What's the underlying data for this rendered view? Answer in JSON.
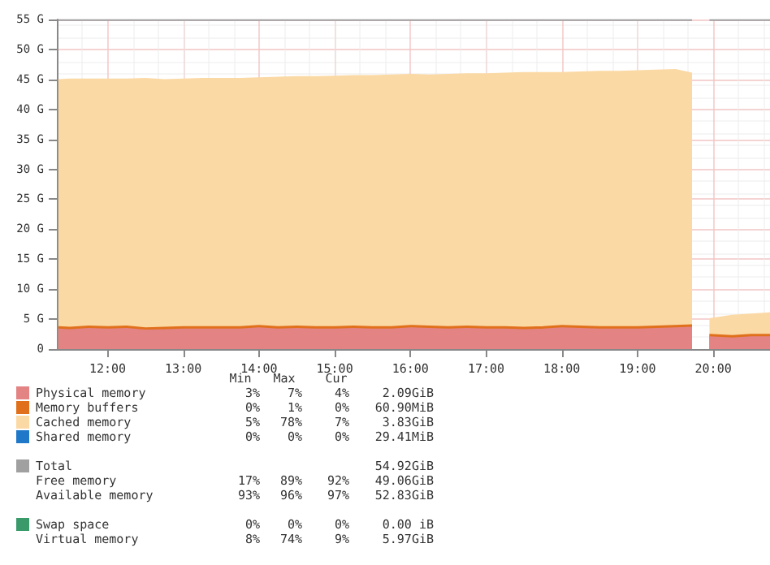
{
  "chart_data": {
    "type": "area",
    "stacked": true,
    "grid": true,
    "legend": "bottom left",
    "marker": "none",
    "x": [
      11.35,
      11.5,
      11.75,
      12,
      12.25,
      12.5,
      12.75,
      13,
      13.25,
      13.5,
      13.75,
      14,
      14.25,
      14.5,
      14.75,
      15,
      15.25,
      15.5,
      15.75,
      16,
      16.25,
      16.5,
      16.75,
      17,
      17.25,
      17.5,
      17.75,
      18,
      18.25,
      18.5,
      18.75,
      19,
      19.25,
      19.5,
      19.72,
      19.85,
      19.95,
      20.25,
      20.5,
      20.75
    ],
    "xlim": [
      11.33,
      20.75
    ],
    "xticks": [
      {
        "value": 12,
        "label": "12:00"
      },
      {
        "value": 13,
        "label": "13:00"
      },
      {
        "value": 14,
        "label": "14:00"
      },
      {
        "value": 15,
        "label": "15:00"
      },
      {
        "value": 16,
        "label": "16:00"
      },
      {
        "value": 17,
        "label": "17:00"
      },
      {
        "value": 18,
        "label": "18:00"
      },
      {
        "value": 19,
        "label": "19:00"
      },
      {
        "value": 20,
        "label": "20:00"
      }
    ],
    "ylim": [
      0,
      55
    ],
    "yticks": [
      0,
      {
        "value": 5,
        "label": "5 G"
      },
      {
        "value": 10,
        "label": "10 G"
      },
      {
        "value": 15,
        "label": "15 G"
      },
      {
        "value": 20,
        "label": "20 G"
      },
      {
        "value": 25,
        "label": "25 G"
      },
      {
        "value": 30,
        "label": "30 G"
      },
      {
        "value": 35,
        "label": "35 G"
      },
      {
        "value": 40,
        "label": "40 G"
      },
      {
        "value": 45,
        "label": "45 G"
      },
      {
        "value": 50,
        "label": "50 G"
      },
      {
        "value": 55,
        "label": "55 G"
      }
    ],
    "series": [
      {
        "name": "Physical memory",
        "color": "#e38383",
        "values": [
          3.3,
          3.2,
          3.4,
          3.3,
          3.4,
          3.1,
          3.2,
          3.3,
          3.3,
          3.3,
          3.3,
          3.5,
          3.3,
          3.4,
          3.3,
          3.3,
          3.4,
          3.3,
          3.3,
          3.5,
          3.4,
          3.3,
          3.4,
          3.3,
          3.3,
          3.2,
          3.3,
          3.5,
          3.4,
          3.3,
          3.3,
          3.3,
          3.4,
          3.5,
          3.6,
          null,
          2.0,
          1.8,
          2.0,
          2.0
        ]
      },
      {
        "name": "Memory buffers",
        "color": "#e0701c",
        "values": [
          0.4,
          0.4,
          0.4,
          0.4,
          0.4,
          0.4,
          0.4,
          0.4,
          0.4,
          0.4,
          0.4,
          0.4,
          0.4,
          0.4,
          0.4,
          0.4,
          0.4,
          0.4,
          0.4,
          0.4,
          0.4,
          0.4,
          0.4,
          0.4,
          0.4,
          0.4,
          0.4,
          0.4,
          0.4,
          0.4,
          0.4,
          0.4,
          0.4,
          0.4,
          0.4,
          null,
          0.4,
          0.4,
          0.4,
          0.4
        ]
      },
      {
        "name": "Cached memory",
        "color": "#fbd9a5",
        "values": [
          41.2,
          41.4,
          41.2,
          41.3,
          41.2,
          41.6,
          41.3,
          41.3,
          41.4,
          41.4,
          41.4,
          41.3,
          41.6,
          41.6,
          41.7,
          41.8,
          41.8,
          41.9,
          42.0,
          41.9,
          41.9,
          42.1,
          42.1,
          42.2,
          42.3,
          42.5,
          42.4,
          42.2,
          42.4,
          42.6,
          42.6,
          42.7,
          42.7,
          42.7,
          42.0,
          null,
          2.6,
          3.4,
          3.4,
          3.6
        ]
      },
      {
        "name": "Shared memory",
        "type": "line",
        "color": "#1f78c8",
        "values": [
          null,
          null,
          null,
          null,
          null,
          null,
          null,
          null,
          null,
          null,
          null,
          null,
          null,
          null,
          null,
          null,
          null,
          null,
          null,
          null,
          null,
          null,
          null,
          null,
          null,
          null,
          null,
          null,
          null,
          null,
          null,
          null,
          null,
          null,
          null,
          null,
          null,
          null,
          null,
          null
        ]
      },
      {
        "name": "Total",
        "type": "line",
        "color": "#a0a0a0",
        "values": [
          54.9,
          54.9,
          54.9,
          54.9,
          54.9,
          54.9,
          54.9,
          54.9,
          54.9,
          54.9,
          54.9,
          54.9,
          54.9,
          54.9,
          54.9,
          54.9,
          54.9,
          54.9,
          54.9,
          54.9,
          54.9,
          54.9,
          54.9,
          54.9,
          54.9,
          54.9,
          54.9,
          54.9,
          54.9,
          54.9,
          54.9,
          54.9,
          54.9,
          54.9,
          54.9,
          null,
          54.9,
          54.9,
          54.9,
          54.9
        ]
      },
      {
        "name": "Swap space",
        "type": "line",
        "color": "#3a9a6a",
        "values": [
          null,
          null,
          null,
          null,
          null,
          null,
          null,
          null,
          null,
          null,
          null,
          null,
          null,
          null,
          null,
          null,
          null,
          null,
          null,
          null,
          null,
          null,
          null,
          null,
          null,
          null,
          null,
          null,
          null,
          null,
          null,
          null,
          null,
          null,
          null,
          null,
          null,
          null,
          null,
          null
        ]
      }
    ],
    "annotations": [
      "Min",
      "Max",
      "Cur",
      "3%",
      "7%",
      "4%",
      "2.09GiB",
      "0%",
      "1%",
      "0%",
      "60.90MiB",
      "5%",
      "78%",
      "7%",
      "3.83GiB",
      "0%",
      "0%",
      "0%",
      "29.41MiB",
      "54.92GiB",
      "Free memory",
      "17%",
      "89%",
      "92%",
      "49.06GiB",
      "Available memory",
      "93%",
      "96%",
      "97%",
      "52.83GiB",
      "0%",
      "0%",
      "0%",
      "0.00 iB",
      "Virtual memory",
      "8%",
      "74%",
      "9%",
      "5.97GiB"
    ]
  }
}
